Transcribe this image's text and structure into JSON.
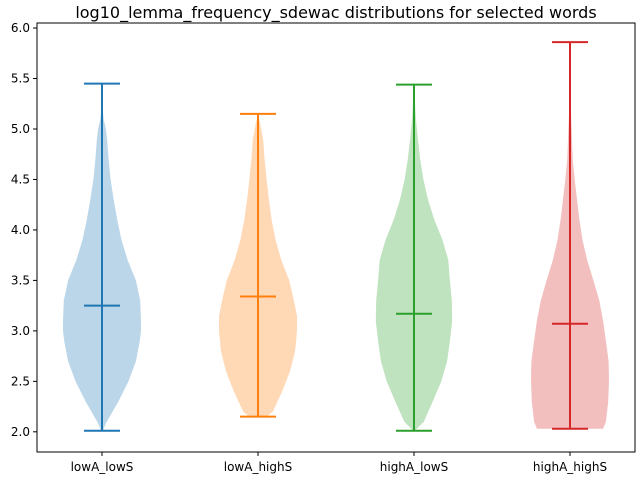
{
  "chart_data": {
    "type": "violin",
    "title": "log10_lemma_frequency_sdewac distributions for selected words",
    "xlabel": "",
    "ylabel": "",
    "ylim": [
      1.8,
      6.05
    ],
    "yticks": [
      2.0,
      2.5,
      3.0,
      3.5,
      4.0,
      4.5,
      5.0,
      5.5,
      6.0
    ],
    "ytick_labels": [
      "2.0",
      "2.5",
      "3.0",
      "3.5",
      "4.0",
      "4.5",
      "5.0",
      "5.5",
      "6.0"
    ],
    "categories": [
      "lowA_lowS",
      "lowA_highS",
      "highA_lowS",
      "highA_highS"
    ],
    "grid": false,
    "series": [
      {
        "category": "lowA_lowS",
        "color": "#1f77b4",
        "min": 2.01,
        "median": 3.25,
        "max": 5.45,
        "density": [
          [
            2.01,
            0.02
          ],
          [
            2.1,
            0.12
          ],
          [
            2.3,
            0.42
          ],
          [
            2.5,
            0.68
          ],
          [
            2.7,
            0.87
          ],
          [
            2.9,
            0.97
          ],
          [
            3.0,
            1.0
          ],
          [
            3.1,
            1.0
          ],
          [
            3.3,
            0.98
          ],
          [
            3.5,
            0.87
          ],
          [
            3.7,
            0.66
          ],
          [
            3.9,
            0.5
          ],
          [
            4.1,
            0.39
          ],
          [
            4.3,
            0.3
          ],
          [
            4.5,
            0.22
          ],
          [
            4.7,
            0.17
          ],
          [
            4.9,
            0.13
          ],
          [
            5.0,
            0.1
          ],
          [
            5.1,
            0.04
          ],
          [
            5.2,
            0.02
          ],
          [
            5.45,
            0.0
          ]
        ]
      },
      {
        "category": "lowA_highS",
        "color": "#ff7f0e",
        "min": 2.15,
        "median": 3.34,
        "max": 5.15,
        "density": [
          [
            2.15,
            0.22
          ],
          [
            2.2,
            0.38
          ],
          [
            2.4,
            0.62
          ],
          [
            2.6,
            0.82
          ],
          [
            2.8,
            0.95
          ],
          [
            3.0,
            1.0
          ],
          [
            3.15,
            1.0
          ],
          [
            3.3,
            0.92
          ],
          [
            3.5,
            0.8
          ],
          [
            3.7,
            0.6
          ],
          [
            3.9,
            0.45
          ],
          [
            4.1,
            0.35
          ],
          [
            4.3,
            0.28
          ],
          [
            4.5,
            0.22
          ],
          [
            4.7,
            0.17
          ],
          [
            4.9,
            0.13
          ],
          [
            5.05,
            0.06
          ],
          [
            5.15,
            0.0
          ]
        ]
      },
      {
        "category": "highA_lowS",
        "color": "#2ca02c",
        "min": 2.01,
        "median": 3.17,
        "max": 5.44,
        "density": [
          [
            2.01,
            0.02
          ],
          [
            2.1,
            0.25
          ],
          [
            2.3,
            0.48
          ],
          [
            2.5,
            0.7
          ],
          [
            2.7,
            0.85
          ],
          [
            2.9,
            0.92
          ],
          [
            3.1,
            0.98
          ],
          [
            3.3,
            0.97
          ],
          [
            3.5,
            0.92
          ],
          [
            3.7,
            0.88
          ],
          [
            3.9,
            0.73
          ],
          [
            4.1,
            0.52
          ],
          [
            4.3,
            0.36
          ],
          [
            4.5,
            0.24
          ],
          [
            4.7,
            0.16
          ],
          [
            4.9,
            0.1
          ],
          [
            5.1,
            0.05
          ],
          [
            5.3,
            0.02
          ],
          [
            5.44,
            0.0
          ]
        ]
      },
      {
        "category": "highA_highS",
        "color": "#d62728",
        "min": 2.03,
        "median": 3.07,
        "max": 5.86,
        "density": [
          [
            2.03,
            0.85
          ],
          [
            2.1,
            0.92
          ],
          [
            2.3,
            0.98
          ],
          [
            2.5,
            1.0
          ],
          [
            2.7,
            0.99
          ],
          [
            2.9,
            0.92
          ],
          [
            3.1,
            0.85
          ],
          [
            3.3,
            0.75
          ],
          [
            3.5,
            0.6
          ],
          [
            3.7,
            0.44
          ],
          [
            3.9,
            0.32
          ],
          [
            4.1,
            0.24
          ],
          [
            4.3,
            0.18
          ],
          [
            4.5,
            0.12
          ],
          [
            4.7,
            0.07
          ],
          [
            4.9,
            0.05
          ],
          [
            5.1,
            0.03
          ],
          [
            5.4,
            0.01
          ],
          [
            5.86,
            0.0
          ]
        ]
      }
    ]
  }
}
